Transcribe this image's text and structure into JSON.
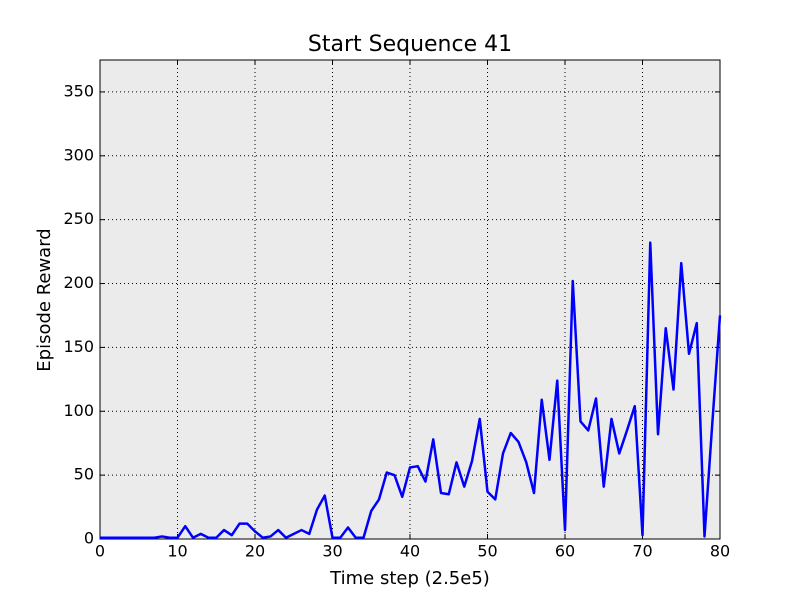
{
  "chart_data": {
    "type": "line",
    "title": "Start Sequence 41",
    "x_label": "Time step (2.5e5)",
    "y_label": "Episode Reward",
    "x": [
      0,
      1,
      2,
      3,
      4,
      5,
      6,
      7,
      8,
      9,
      10,
      11,
      12,
      13,
      14,
      15,
      16,
      17,
      18,
      19,
      20,
      21,
      22,
      23,
      24,
      25,
      26,
      27,
      28,
      29,
      30,
      31,
      32,
      33,
      34,
      35,
      36,
      37,
      38,
      39,
      40,
      41,
      42,
      43,
      44,
      45,
      46,
      47,
      48,
      49,
      50,
      51,
      52,
      53,
      54,
      55,
      56,
      57,
      58,
      59,
      60,
      61,
      62,
      63,
      64,
      65,
      66,
      67,
      68,
      69,
      70,
      71,
      72,
      73,
      74,
      75,
      76,
      77,
      78,
      79,
      80
    ],
    "series": [
      {
        "color": "#0000ff",
        "values": [
          1,
          1,
          1,
          1,
          1,
          1,
          1,
          1,
          2,
          1,
          1,
          10,
          1,
          4,
          1,
          1,
          7,
          3,
          12,
          12,
          6,
          1,
          2,
          7,
          1,
          4,
          7,
          4,
          23,
          34,
          1,
          1,
          9,
          1,
          1,
          22,
          31,
          52,
          50,
          33,
          56,
          57,
          45,
          78,
          36,
          35,
          60,
          41,
          61,
          94,
          37,
          31,
          67,
          83,
          76,
          60,
          36,
          109,
          62,
          124,
          7,
          202,
          92,
          85,
          110,
          41,
          94,
          67,
          85,
          104,
          3,
          232,
          82,
          165,
          117,
          216,
          145,
          169,
          2,
          90,
          175
        ]
      }
    ],
    "xlim": [
      0,
      80
    ],
    "ylim": [
      0,
      375
    ],
    "xticks": [
      0,
      10,
      20,
      30,
      40,
      50,
      60,
      70,
      80
    ],
    "yticks": [
      0,
      50,
      100,
      150,
      200,
      250,
      300,
      350
    ],
    "grid": true
  }
}
